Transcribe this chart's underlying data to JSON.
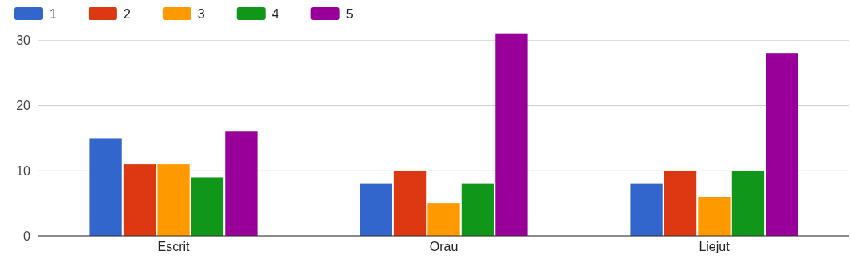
{
  "chart_data": {
    "type": "bar",
    "categories": [
      "Escrit",
      "Orau",
      "Liejut"
    ],
    "series": [
      {
        "name": "1",
        "color": "#3366cc",
        "values": [
          15,
          8,
          8
        ]
      },
      {
        "name": "2",
        "color": "#dc3912",
        "values": [
          11,
          10,
          10
        ]
      },
      {
        "name": "3",
        "color": "#ff9900",
        "values": [
          11,
          5,
          6
        ]
      },
      {
        "name": "4",
        "color": "#109618",
        "values": [
          9,
          8,
          10
        ]
      },
      {
        "name": "5",
        "color": "#990099",
        "values": [
          16,
          31,
          28
        ]
      }
    ],
    "ylim": [
      0,
      35
    ],
    "yticks": [
      0,
      10,
      20,
      30
    ],
    "grid": "y",
    "legend": "top left"
  }
}
